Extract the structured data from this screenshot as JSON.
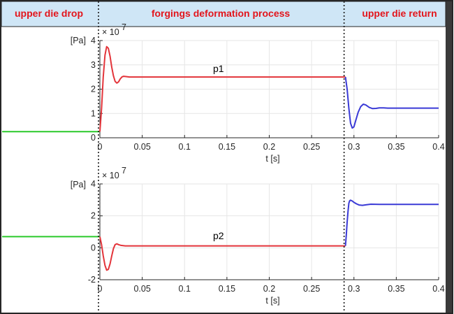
{
  "phases": {
    "labels": [
      "upper die drop",
      "forgings deformation process",
      "upper die return"
    ],
    "text_color": "#e3141b",
    "header_bg": "#cfe6f6",
    "divider_times": [
      0.0,
      0.29
    ]
  },
  "chart_data": [
    {
      "type": "line",
      "id": "top",
      "xlabel": "t [s]",
      "ylabel": "[Pa]",
      "yexponent": "× 10",
      "yexponent_power": "7",
      "xlim": [
        0,
        0.4
      ],
      "ylim": [
        0,
        4
      ],
      "x_ticks": [
        0,
        0.05,
        0.1,
        0.15,
        0.2,
        0.25,
        0.3,
        0.35,
        0.4
      ],
      "x_tick_labels": [
        "0",
        "0.05",
        "0.1",
        "0.15",
        "0.2",
        "0.25",
        "0.3",
        "0.35",
        "0.4"
      ],
      "y_ticks": [
        0,
        1,
        2,
        3,
        4
      ],
      "y_tick_labels": [
        "0",
        "1",
        "2",
        "3",
        "4"
      ],
      "grid": true,
      "annotations": [
        {
          "text": "p1",
          "x": 0.14,
          "y": 2.7
        }
      ],
      "pre_level": 0.25,
      "series": [
        {
          "name": "drop",
          "color": "#2ac92a",
          "x": [
            -0.12,
            0.0
          ],
          "y": [
            0.25,
            0.25
          ]
        },
        {
          "name": "deformation",
          "color": "#e3343a",
          "x": [
            0.0,
            0.002,
            0.004,
            0.006,
            0.008,
            0.01,
            0.012,
            0.014,
            0.016,
            0.018,
            0.02,
            0.022,
            0.024,
            0.026,
            0.028,
            0.03,
            0.035,
            0.04,
            0.05,
            0.06,
            0.1,
            0.15,
            0.2,
            0.25,
            0.29
          ],
          "y": [
            0.25,
            1.2,
            2.5,
            3.4,
            3.75,
            3.68,
            3.35,
            2.9,
            2.55,
            2.32,
            2.25,
            2.3,
            2.42,
            2.5,
            2.53,
            2.52,
            2.5,
            2.5,
            2.5,
            2.5,
            2.5,
            2.5,
            2.5,
            2.5,
            2.5
          ]
        },
        {
          "name": "return",
          "color": "#3a3ad6",
          "x": [
            0.29,
            0.292,
            0.294,
            0.296,
            0.298,
            0.3,
            0.302,
            0.305,
            0.308,
            0.311,
            0.314,
            0.318,
            0.322,
            0.326,
            0.33,
            0.335,
            0.34,
            0.35,
            0.36,
            0.38,
            0.4
          ],
          "y": [
            2.5,
            2.0,
            1.2,
            0.6,
            0.4,
            0.45,
            0.7,
            1.05,
            1.28,
            1.38,
            1.35,
            1.25,
            1.2,
            1.21,
            1.23,
            1.23,
            1.22,
            1.22,
            1.22,
            1.22,
            1.22
          ]
        }
      ]
    },
    {
      "type": "line",
      "id": "bottom",
      "xlabel": "t [s]",
      "ylabel": "[Pa]",
      "yexponent": "× 10",
      "yexponent_power": "7",
      "xlim": [
        0,
        0.4
      ],
      "ylim": [
        -2,
        4
      ],
      "x_ticks": [
        0,
        0.05,
        0.1,
        0.15,
        0.2,
        0.25,
        0.3,
        0.35,
        0.4
      ],
      "x_tick_labels": [
        "0",
        "0.05",
        "0.1",
        "0.15",
        "0.2",
        "0.25",
        "0.3",
        "0.35",
        "0.4"
      ],
      "y_ticks": [
        -2,
        0,
        2,
        4
      ],
      "y_tick_labels": [
        "-2",
        "0",
        "2",
        "4"
      ],
      "grid": true,
      "annotations": [
        {
          "text": "p2",
          "x": 0.14,
          "y": 0.55
        }
      ],
      "series": [
        {
          "name": "drop",
          "color": "#2ac92a",
          "x": [
            -0.12,
            0.0
          ],
          "y": [
            0.7,
            0.7
          ]
        },
        {
          "name": "deformation",
          "color": "#e3343a",
          "x": [
            0.0,
            0.002,
            0.004,
            0.006,
            0.008,
            0.01,
            0.012,
            0.014,
            0.016,
            0.018,
            0.02,
            0.022,
            0.025,
            0.03,
            0.04,
            0.05,
            0.1,
            0.15,
            0.2,
            0.25,
            0.29
          ],
          "y": [
            0.7,
            0.2,
            -0.5,
            -1.1,
            -1.4,
            -1.35,
            -1.0,
            -0.5,
            -0.05,
            0.2,
            0.25,
            0.2,
            0.15,
            0.12,
            0.12,
            0.12,
            0.12,
            0.12,
            0.12,
            0.12,
            0.12
          ]
        },
        {
          "name": "return",
          "color": "#3a3ad6",
          "x": [
            0.29,
            0.291,
            0.292,
            0.293,
            0.294,
            0.295,
            0.296,
            0.298,
            0.3,
            0.303,
            0.306,
            0.31,
            0.315,
            0.32,
            0.33,
            0.34,
            0.36,
            0.38,
            0.4
          ],
          "y": [
            0.12,
            0.8,
            1.6,
            2.3,
            2.8,
            2.95,
            2.98,
            2.93,
            2.85,
            2.75,
            2.68,
            2.66,
            2.7,
            2.73,
            2.72,
            2.72,
            2.72,
            2.72,
            2.72
          ]
        }
      ]
    }
  ]
}
